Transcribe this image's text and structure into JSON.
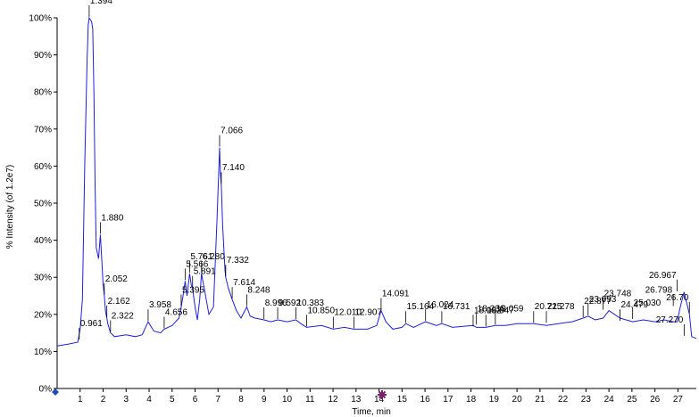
{
  "chart_data": {
    "type": "line",
    "title": "",
    "xlabel": "Time, min",
    "ylabel": "% Intensity (of 1.2e7)",
    "xlim": [
      0,
      27.8
    ],
    "ylim": [
      0,
      100
    ],
    "grid": false,
    "line_color": "#1f1fe0",
    "x_ticks": [
      "1",
      "2",
      "3",
      "4",
      "5",
      "6",
      "7",
      "8",
      "9",
      "10",
      "11",
      "12",
      "13",
      "14",
      "15",
      "16",
      "17",
      "18",
      "19",
      "20",
      "21",
      "22",
      "23",
      "24",
      "25",
      "26",
      "27"
    ],
    "y_ticks": [
      "0%",
      "10%",
      "20%",
      "30%",
      "40%",
      "50%",
      "60%",
      "70%",
      "80%",
      "90%",
      "100%"
    ],
    "series": [
      {
        "x": [
          0.0,
          0.5,
          0.9,
          1.0,
          1.1,
          1.2,
          1.3,
          1.35,
          1.394,
          1.45,
          1.5,
          1.55,
          1.6,
          1.65,
          1.7,
          1.8,
          1.88,
          1.95,
          2.0,
          2.052,
          2.1,
          2.162,
          2.2,
          2.322,
          2.5,
          3.0,
          3.4,
          3.7,
          3.958,
          4.2,
          4.5,
          4.656,
          5.0,
          5.3,
          5.395,
          5.5,
          5.566,
          5.65,
          5.761,
          5.83,
          5.891,
          6.0,
          6.1,
          6.2,
          6.28,
          6.4,
          6.6,
          6.8,
          6.95,
          7.066,
          7.1,
          7.14,
          7.2,
          7.3,
          7.332,
          7.45,
          7.614,
          7.8,
          8.0,
          8.248,
          8.4,
          8.6,
          8.996,
          9.3,
          9.592,
          10.0,
          10.383,
          10.6,
          10.85,
          11.5,
          12.01,
          12.5,
          12.907,
          13.5,
          13.9,
          14.091,
          14.3,
          14.6,
          15.0,
          15.164,
          15.5,
          16.024,
          16.5,
          16.731,
          17.2,
          18.092,
          18.236,
          18.647,
          19.059,
          19.5,
          20.0,
          20.725,
          21.278,
          21.8,
          22.4,
          22.877,
          23.093,
          23.4,
          23.748,
          24.0,
          24.479,
          25.03,
          25.5,
          26.0,
          26.4,
          26.798,
          26.967,
          27.1,
          27.27,
          27.5,
          27.6,
          27.8
        ],
        "y": [
          11.5,
          12,
          12.5,
          16,
          24,
          60,
          88,
          98,
          100,
          99.5,
          99,
          97,
          80,
          55,
          38,
          35,
          41.5,
          34,
          28,
          25,
          21,
          19,
          17.5,
          15,
          14,
          14.5,
          14,
          14.5,
          18,
          15.5,
          15,
          16,
          17,
          19,
          22,
          26,
          29,
          25,
          31,
          28,
          27,
          22,
          18.5,
          24,
          31,
          27,
          20,
          22,
          45,
          65,
          58,
          55,
          44,
          32,
          30,
          27,
          24,
          21,
          19,
          22,
          19.5,
          19,
          18.5,
          18,
          18.5,
          18,
          18.5,
          17.5,
          16.5,
          17,
          16,
          16.5,
          16,
          16,
          17,
          21,
          18,
          16,
          16.5,
          17.5,
          16.5,
          18,
          17,
          17.5,
          16.5,
          17,
          16.5,
          16.5,
          17,
          17,
          17.5,
          17.5,
          17,
          17.5,
          18,
          19,
          19.5,
          18.5,
          19,
          21,
          19,
          18,
          18.5,
          18,
          18.5,
          18,
          18,
          22,
          26,
          20,
          14,
          13.5
        ]
      }
    ],
    "peak_labels": [
      {
        "text": "0.961",
        "x": 0.961,
        "y": 13
      },
      {
        "text": "1.394",
        "x": 1.394,
        "y": 100
      },
      {
        "text": "1.880",
        "x": 1.88,
        "y": 41.5
      },
      {
        "text": "2.052",
        "x": 2.052,
        "y": 25
      },
      {
        "text": "2.162",
        "x": 2.162,
        "y": 19
      },
      {
        "text": "2.322",
        "x": 2.322,
        "y": 15
      },
      {
        "text": "3.958",
        "x": 3.958,
        "y": 18
      },
      {
        "text": "4.656",
        "x": 4.656,
        "y": 16
      },
      {
        "text": "5.395",
        "x": 5.395,
        "y": 22
      },
      {
        "text": "5.566",
        "x": 5.566,
        "y": 29
      },
      {
        "text": "5.761",
        "x": 5.761,
        "y": 31
      },
      {
        "text": "5.891",
        "x": 5.891,
        "y": 27
      },
      {
        "text": "6.280",
        "x": 6.28,
        "y": 31
      },
      {
        "text": "7.066",
        "x": 7.066,
        "y": 65
      },
      {
        "text": "7.140",
        "x": 7.14,
        "y": 55
      },
      {
        "text": "7.332",
        "x": 7.332,
        "y": 30
      },
      {
        "text": "7.614",
        "x": 7.614,
        "y": 24
      },
      {
        "text": "8.248",
        "x": 8.248,
        "y": 22
      },
      {
        "text": "8.996",
        "x": 8.996,
        "y": 18.5
      },
      {
        "text": "9.592",
        "x": 9.592,
        "y": 18.5
      },
      {
        "text": "10.383",
        "x": 10.383,
        "y": 18.5
      },
      {
        "text": "10.850",
        "x": 10.85,
        "y": 16.5
      },
      {
        "text": "12.010",
        "x": 12.01,
        "y": 16
      },
      {
        "text": "12.907",
        "x": 12.907,
        "y": 16
      },
      {
        "text": "14.091",
        "x": 14.091,
        "y": 21
      },
      {
        "text": "15.164",
        "x": 15.164,
        "y": 17.5
      },
      {
        "text": "16.024",
        "x": 16.024,
        "y": 18
      },
      {
        "text": "16.731",
        "x": 16.731,
        "y": 17.5
      },
      {
        "text": "18.092",
        "x": 18.092,
        "y": 16.5
      },
      {
        "text": "18.236",
        "x": 18.236,
        "y": 17
      },
      {
        "text": "18.647",
        "x": 18.647,
        "y": 16.5
      },
      {
        "text": "19.059",
        "x": 19.059,
        "y": 17
      },
      {
        "text": "20.725",
        "x": 20.725,
        "y": 17.5
      },
      {
        "text": "21.278",
        "x": 21.278,
        "y": 17.5
      },
      {
        "text": "22.877",
        "x": 22.877,
        "y": 19
      },
      {
        "text": "23.093",
        "x": 23.093,
        "y": 19.5
      },
      {
        "text": "23.748",
        "x": 23.748,
        "y": 21
      },
      {
        "text": "24.479",
        "x": 24.479,
        "y": 18
      },
      {
        "text": "25.030",
        "x": 25.03,
        "y": 18.5
      },
      {
        "text": "26.798",
        "x": 26.798,
        "y": 22
      },
      {
        "text": "26.967",
        "x": 26.967,
        "y": 26
      },
      {
        "text": "27.270",
        "x": 27.27,
        "y": 14
      },
      {
        "text": "26.70",
        "x": 27.5,
        "y": 20
      }
    ]
  }
}
